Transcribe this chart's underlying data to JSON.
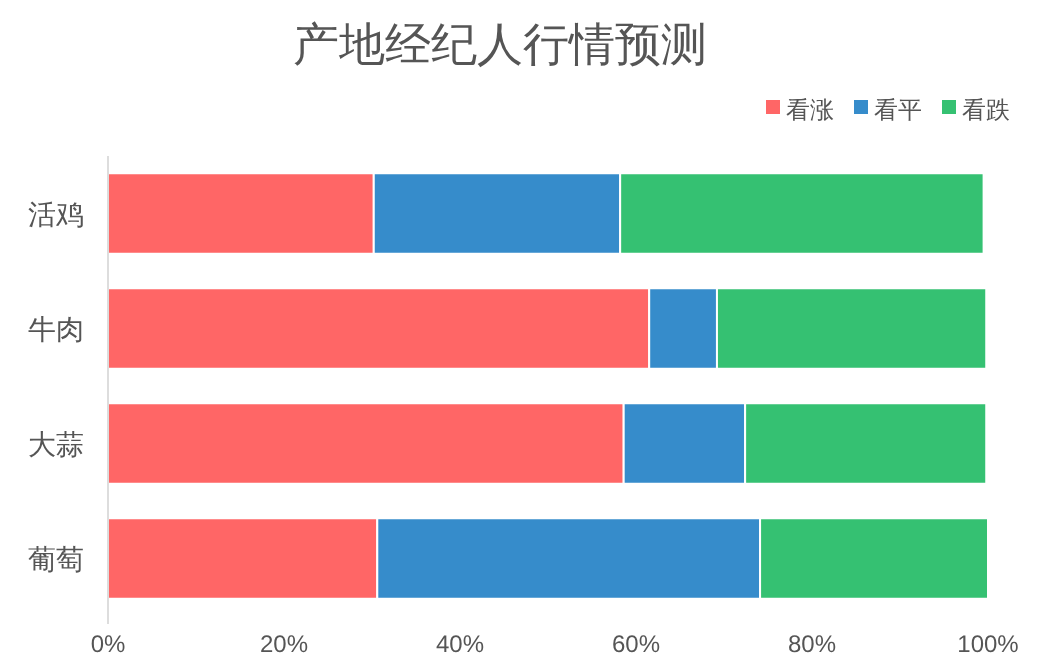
{
  "chart_data": {
    "type": "bar",
    "orientation": "horizontal",
    "stacked": true,
    "title": "产地经纪人行情预测",
    "categories": [
      "活鸡",
      "牛肉",
      "大蒜",
      "葡萄"
    ],
    "series": [
      {
        "name": "看涨",
        "color": "#ff6666",
        "values": [
          30.2,
          61.5,
          58.6,
          30.6
        ]
      },
      {
        "name": "看平",
        "color": "#368ccb",
        "values": [
          28.0,
          7.7,
          13.8,
          43.5
        ]
      },
      {
        "name": "看跌",
        "color": "#35c172",
        "values": [
          41.3,
          30.6,
          27.4,
          25.9
        ]
      }
    ],
    "xlim": [
      0,
      100
    ],
    "xticks": [
      {
        "value": 0,
        "label": "0%"
      },
      {
        "value": 20,
        "label": "20%"
      },
      {
        "value": 40,
        "label": "40%"
      },
      {
        "value": 60,
        "label": "60%"
      },
      {
        "value": 80,
        "label": "80%"
      },
      {
        "value": 100,
        "label": "100%"
      }
    ],
    "grid": false,
    "legend": "top right"
  }
}
